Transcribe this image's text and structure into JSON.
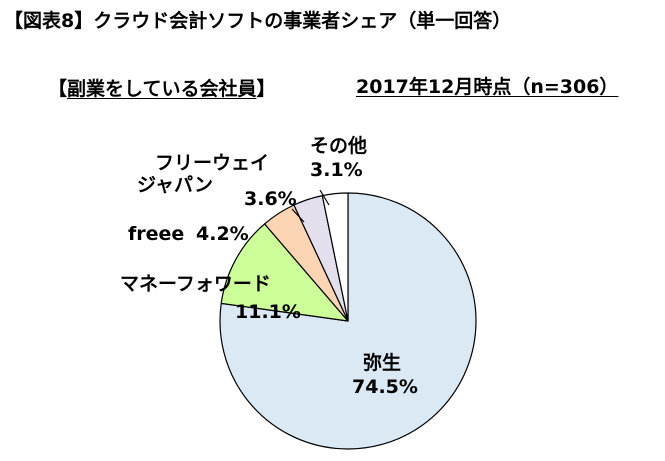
{
  "title": "【図表8】クラウド会計ソフトの事業者シェア（単一回答）",
  "subtitle": {
    "open": "【",
    "text": "副業をしている会社員",
    "close": "】"
  },
  "date_note": "2017年12月時点（n=306）",
  "chart_data": {
    "type": "pie",
    "slices": [
      {
        "label": "弥生",
        "percent_text": "74.5%",
        "value": 74.5,
        "color": "#dae9f4"
      },
      {
        "label": "マネーフォワード",
        "percent_text": "11.1%",
        "value": 11.1,
        "color": "#ccff99"
      },
      {
        "label": "freee",
        "percent_text": "4.2%",
        "value": 4.2,
        "color": "#fcd5b4"
      },
      {
        "label_lines": [
          "フリーウェイ",
          "ジャパン"
        ],
        "percent_text": "3.6%",
        "value": 3.6,
        "color": "#e4dfec"
      },
      {
        "label": "その他",
        "percent_text": "3.1%",
        "value": 3.1,
        "color": "#ffffff"
      }
    ],
    "start": "12 o'clock",
    "direction": "clockwise"
  }
}
